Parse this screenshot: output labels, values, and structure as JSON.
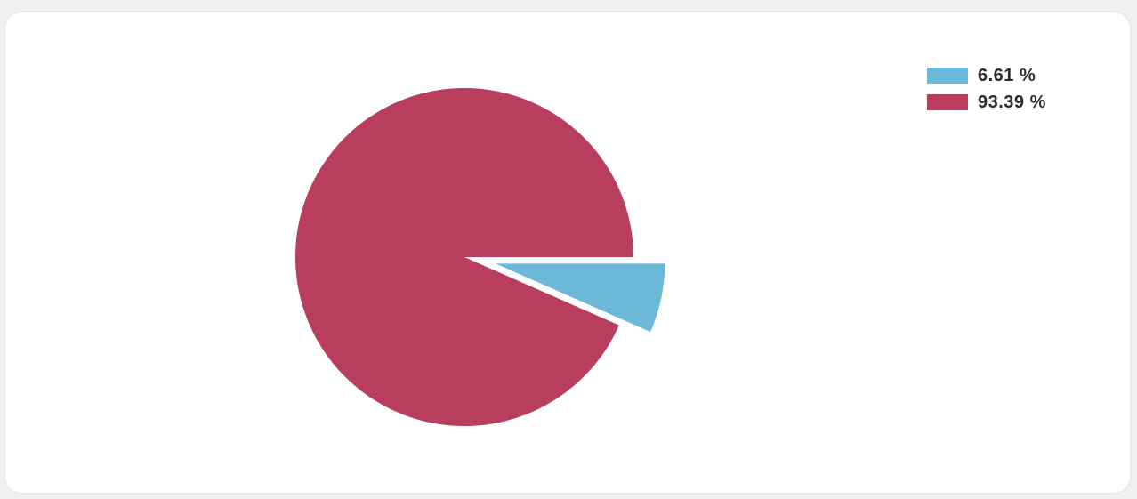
{
  "chart_data": {
    "type": "pie",
    "title": "",
    "slices": [
      {
        "label": "6.61 %",
        "value": 6.61,
        "color": "#6cb8d8",
        "exploded": true
      },
      {
        "label": "93.39 %",
        "value": 93.39,
        "color": "#b93d5c",
        "exploded": false
      }
    ],
    "legend_position": "top-right"
  }
}
